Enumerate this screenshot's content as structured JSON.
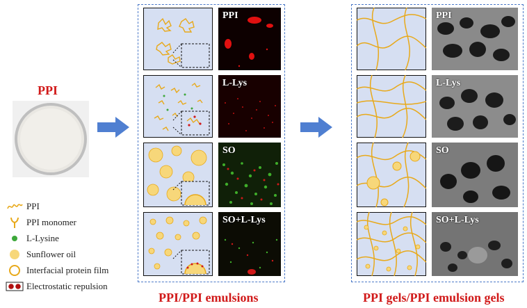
{
  "ppi_label": "PPI",
  "legend": [
    {
      "icon": "ppi-aggregate-icon",
      "label": "PPI"
    },
    {
      "icon": "ppi-monomer-icon",
      "label": "PPI monomer"
    },
    {
      "icon": "l-lysine-dot-icon",
      "label": "L-Lysine"
    },
    {
      "icon": "sunflower-oil-droplet-icon",
      "label": "Sunflower oil"
    },
    {
      "icon": "interfacial-film-ring-icon",
      "label": "Interfacial protein film"
    },
    {
      "icon": "electrostatic-repulsion-icon",
      "label": "Electrostatic repulsion"
    }
  ],
  "emulsions": {
    "caption": "PPI/PPI emulsions",
    "rows": [
      {
        "micro_label": "PPI"
      },
      {
        "micro_label": "L-Lys"
      },
      {
        "micro_label": "SO"
      },
      {
        "micro_label": "SO+L-Lys"
      }
    ]
  },
  "gels": {
    "caption": "PPI gels/PPI emulsion gels",
    "rows": [
      {
        "sem_label": "PPI"
      },
      {
        "sem_label": "L-Lys"
      },
      {
        "sem_label": "SO"
      },
      {
        "sem_label": "SO+L-Lys"
      }
    ]
  },
  "colors": {
    "scheme_bg": "#d6dff2",
    "ppi_gold": "#e8a91a",
    "oil_yellow": "#f7d77a",
    "arrow_blue": "#4f7fd1",
    "caption_red": "#d11a1a",
    "lysine_green": "#3da83a"
  }
}
